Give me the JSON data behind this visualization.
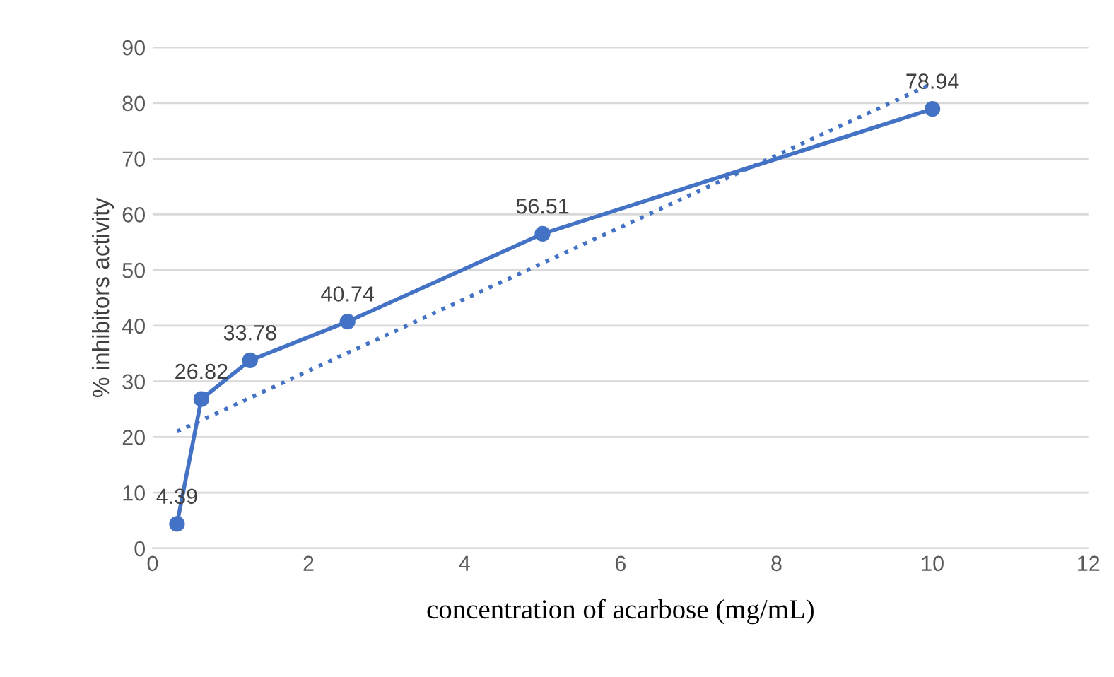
{
  "chart_data": {
    "type": "line",
    "xlabel": "concentration of acarbose (mg/mL)",
    "ylabel": "% inhibitors activity",
    "x": [
      0.3125,
      0.625,
      1.25,
      2.5,
      5,
      10
    ],
    "series": [
      {
        "color": "#4472c4",
        "values": [
          4.39,
          26.82,
          33.78,
          40.74,
          56.51,
          78.94
        ],
        "value_labels": [
          "4.39",
          "26.82",
          "33.78",
          "40.74",
          "56.51",
          "78.94"
        ],
        "marker": "circle",
        "line_style": "solid"
      },
      {
        "color": "#4472c4",
        "x": [
          0.3125,
          10
        ],
        "values": [
          21,
          83.5
        ],
        "marker": "none",
        "line_style": "dotted"
      }
    ],
    "xlim": [
      0,
      12
    ],
    "xticks": [
      0,
      2,
      4,
      6,
      8,
      10,
      12
    ],
    "ylim": [
      0,
      90
    ],
    "yticks": [
      0,
      10,
      20,
      30,
      40,
      50,
      60,
      70,
      80,
      90
    ],
    "grid": "y"
  }
}
